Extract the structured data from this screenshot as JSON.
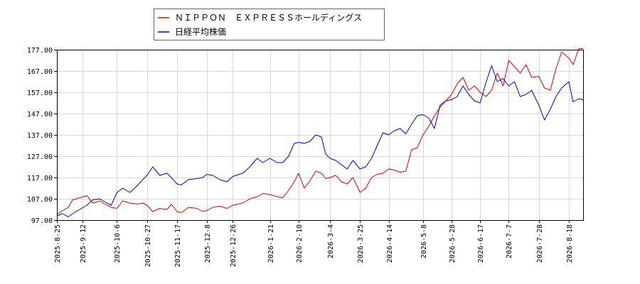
{
  "chart_data": {
    "type": "line",
    "title": "",
    "xlabel": "",
    "ylabel": "",
    "ylim": [
      97,
      177
    ],
    "yticks": [
      "97.00",
      "107.00",
      "117.00",
      "127.00",
      "137.00",
      "147.00",
      "157.00",
      "167.00",
      "177.00"
    ],
    "ytick_values": [
      97,
      107,
      117,
      127,
      137,
      147,
      157,
      167,
      177
    ],
    "xlim": [
      "2025-08-25",
      "2026-08-28"
    ],
    "xticks": [
      "2025-8-25",
      "2025-9-12",
      "2025-10-6",
      "2025-10-27",
      "2025-11-17",
      "2025-12-8",
      "2025-12-26",
      "2026-1-21",
      "2026-2-10",
      "2026-3-4",
      "2026-3-25",
      "2026-4-14",
      "2026-5-8",
      "2026-5-28",
      "2026-6-17",
      "2026-7-7",
      "2026-7-28",
      "2026-8-18"
    ],
    "grid": true,
    "legend_position": "top-center",
    "series": [
      {
        "name": "ＮＩＰＰＯＮ　ＥＸＰＲＥＳＳホールディングス",
        "color": "#dd0000",
        "points": [
          [
            "2025-08-25",
            99.5
          ],
          [
            "2025-08-29",
            101.5
          ],
          [
            "2025-09-02",
            103.0
          ],
          [
            "2025-09-05",
            106.5
          ],
          [
            "2025-09-10",
            107.5
          ],
          [
            "2025-09-15",
            108.5
          ],
          [
            "2025-09-19",
            105.0
          ],
          [
            "2025-09-24",
            106.0
          ],
          [
            "2025-09-29",
            104.0
          ],
          [
            "2025-10-02",
            103.0
          ],
          [
            "2025-10-06",
            102.5
          ],
          [
            "2025-10-10",
            106.0
          ],
          [
            "2025-10-15",
            105.0
          ],
          [
            "2025-10-20",
            104.5
          ],
          [
            "2025-10-24",
            105.0
          ],
          [
            "2025-10-27",
            104.0
          ],
          [
            "2025-10-31",
            101.0
          ],
          [
            "2025-11-05",
            102.5
          ],
          [
            "2025-11-10",
            102.0
          ],
          [
            "2025-11-13",
            104.5
          ],
          [
            "2025-11-17",
            101.0
          ],
          [
            "2025-11-20",
            100.5
          ],
          [
            "2025-11-25",
            103.0
          ],
          [
            "2025-12-01",
            102.5
          ],
          [
            "2025-12-05",
            101.0
          ],
          [
            "2025-12-08",
            101.5
          ],
          [
            "2025-12-12",
            103.0
          ],
          [
            "2025-12-17",
            103.5
          ],
          [
            "2025-12-22",
            102.5
          ],
          [
            "2025-12-26",
            104.0
          ],
          [
            "2026-01-02",
            105.0
          ],
          [
            "2026-01-07",
            107.0
          ],
          [
            "2026-01-12",
            108.0
          ],
          [
            "2026-01-16",
            109.5
          ],
          [
            "2026-01-21",
            109.0
          ],
          [
            "2026-01-26",
            108.0
          ],
          [
            "2026-01-30",
            107.5
          ],
          [
            "2026-02-03",
            111.0
          ],
          [
            "2026-02-07",
            115.0
          ],
          [
            "2026-02-10",
            119.0
          ],
          [
            "2026-02-14",
            112.0
          ],
          [
            "2026-02-18",
            115.5
          ],
          [
            "2026-02-22",
            120.0
          ],
          [
            "2026-02-26",
            119.0
          ],
          [
            "2026-03-01",
            116.5
          ],
          [
            "2026-03-04",
            117.0
          ],
          [
            "2026-03-08",
            118.0
          ],
          [
            "2026-03-12",
            115.0
          ],
          [
            "2026-03-16",
            114.0
          ],
          [
            "2026-03-20",
            117.0
          ],
          [
            "2026-03-25",
            110.0
          ],
          [
            "2026-03-29",
            112.0
          ],
          [
            "2026-04-02",
            117.0
          ],
          [
            "2026-04-06",
            118.5
          ],
          [
            "2026-04-10",
            119.0
          ],
          [
            "2026-04-14",
            121.0
          ],
          [
            "2026-04-18",
            120.5
          ],
          [
            "2026-04-22",
            119.5
          ],
          [
            "2026-04-26",
            120.0
          ],
          [
            "2026-04-30",
            130.0
          ],
          [
            "2026-05-04",
            131.0
          ],
          [
            "2026-05-08",
            137.0
          ],
          [
            "2026-05-12",
            141.0
          ],
          [
            "2026-05-16",
            146.0
          ],
          [
            "2026-05-20",
            150.0
          ],
          [
            "2026-05-24",
            153.0
          ],
          [
            "2026-05-28",
            156.0
          ],
          [
            "2026-06-01",
            161.0
          ],
          [
            "2026-06-05",
            164.0
          ],
          [
            "2026-06-09",
            158.0
          ],
          [
            "2026-06-13",
            160.0
          ],
          [
            "2026-06-17",
            157.0
          ],
          [
            "2026-06-21",
            155.0
          ],
          [
            "2026-06-25",
            158.0
          ],
          [
            "2026-06-29",
            166.0
          ],
          [
            "2026-07-03",
            160.0
          ],
          [
            "2026-07-07",
            172.0
          ],
          [
            "2026-07-11",
            169.0
          ],
          [
            "2026-07-15",
            166.0
          ],
          [
            "2026-07-19",
            170.0
          ],
          [
            "2026-07-23",
            164.0
          ],
          [
            "2026-07-28",
            164.5
          ],
          [
            "2026-08-01",
            159.0
          ],
          [
            "2026-08-05",
            158.0
          ],
          [
            "2026-08-09",
            168.0
          ],
          [
            "2026-08-13",
            176.0
          ],
          [
            "2026-08-18",
            173.0
          ],
          [
            "2026-08-21",
            170.0
          ],
          [
            "2026-08-25",
            177.5
          ],
          [
            "2026-08-28",
            177.5
          ]
        ]
      },
      {
        "name": "日経平均株価",
        "color": "#0000cc",
        "points": [
          [
            "2025-08-25",
            99.0
          ],
          [
            "2025-08-29",
            100.0
          ],
          [
            "2025-09-02",
            98.5
          ],
          [
            "2025-09-05",
            100.0
          ],
          [
            "2025-09-10",
            102.0
          ],
          [
            "2025-09-15",
            104.0
          ],
          [
            "2025-09-19",
            106.5
          ],
          [
            "2025-09-24",
            107.0
          ],
          [
            "2025-09-29",
            105.0
          ],
          [
            "2025-10-02",
            104.0
          ],
          [
            "2025-10-06",
            110.0
          ],
          [
            "2025-10-10",
            112.0
          ],
          [
            "2025-10-15",
            110.0
          ],
          [
            "2025-10-20",
            113.0
          ],
          [
            "2025-10-24",
            116.0
          ],
          [
            "2025-10-27",
            118.0
          ],
          [
            "2025-10-31",
            122.0
          ],
          [
            "2025-11-05",
            118.0
          ],
          [
            "2025-11-10",
            119.0
          ],
          [
            "2025-11-13",
            117.0
          ],
          [
            "2025-11-17",
            114.0
          ],
          [
            "2025-11-20",
            113.5
          ],
          [
            "2025-11-25",
            116.0
          ],
          [
            "2025-12-01",
            116.5
          ],
          [
            "2025-12-05",
            117.0
          ],
          [
            "2025-12-08",
            118.5
          ],
          [
            "2025-12-12",
            118.0
          ],
          [
            "2025-12-17",
            116.0
          ],
          [
            "2025-12-22",
            115.0
          ],
          [
            "2025-12-26",
            117.5
          ],
          [
            "2026-01-02",
            119.0
          ],
          [
            "2026-01-07",
            122.0
          ],
          [
            "2026-01-12",
            126.0
          ],
          [
            "2026-01-16",
            124.0
          ],
          [
            "2026-01-21",
            126.0
          ],
          [
            "2026-01-26",
            124.0
          ],
          [
            "2026-01-30",
            124.0
          ],
          [
            "2026-02-03",
            127.0
          ],
          [
            "2026-02-07",
            133.0
          ],
          [
            "2026-02-10",
            133.5
          ],
          [
            "2026-02-14",
            133.0
          ],
          [
            "2026-02-18",
            134.0
          ],
          [
            "2026-02-22",
            137.0
          ],
          [
            "2026-02-26",
            136.0
          ],
          [
            "2026-03-01",
            128.0
          ],
          [
            "2026-03-04",
            126.0
          ],
          [
            "2026-03-08",
            125.0
          ],
          [
            "2026-03-12",
            123.0
          ],
          [
            "2026-03-16",
            121.0
          ],
          [
            "2026-03-20",
            125.0
          ],
          [
            "2026-03-25",
            121.0
          ],
          [
            "2026-03-29",
            122.0
          ],
          [
            "2026-04-02",
            126.0
          ],
          [
            "2026-04-06",
            132.0
          ],
          [
            "2026-04-10",
            138.0
          ],
          [
            "2026-04-14",
            137.0
          ],
          [
            "2026-04-18",
            139.0
          ],
          [
            "2026-04-22",
            140.0
          ],
          [
            "2026-04-26",
            137.5
          ],
          [
            "2026-04-30",
            142.0
          ],
          [
            "2026-05-04",
            146.0
          ],
          [
            "2026-05-08",
            146.5
          ],
          [
            "2026-05-12",
            145.0
          ],
          [
            "2026-05-16",
            140.0
          ],
          [
            "2026-05-20",
            151.0
          ],
          [
            "2026-05-24",
            153.0
          ],
          [
            "2026-05-28",
            153.5
          ],
          [
            "2026-06-01",
            155.0
          ],
          [
            "2026-06-05",
            160.0
          ],
          [
            "2026-06-09",
            156.0
          ],
          [
            "2026-06-13",
            153.0
          ],
          [
            "2026-06-17",
            152.0
          ],
          [
            "2026-06-21",
            161.5
          ],
          [
            "2026-06-25",
            169.5
          ],
          [
            "2026-06-29",
            162.0
          ],
          [
            "2026-07-03",
            163.5
          ],
          [
            "2026-07-07",
            160.0
          ],
          [
            "2026-07-11",
            162.0
          ],
          [
            "2026-07-15",
            155.0
          ],
          [
            "2026-07-19",
            156.0
          ],
          [
            "2026-07-23",
            158.0
          ],
          [
            "2026-07-28",
            151.0
          ],
          [
            "2026-08-01",
            144.0
          ],
          [
            "2026-08-05",
            149.0
          ],
          [
            "2026-08-09",
            155.0
          ],
          [
            "2026-08-13",
            159.0
          ],
          [
            "2026-08-18",
            162.0
          ],
          [
            "2026-08-21",
            152.5
          ],
          [
            "2026-08-25",
            154.0
          ],
          [
            "2026-08-28",
            153.5
          ]
        ]
      }
    ]
  }
}
